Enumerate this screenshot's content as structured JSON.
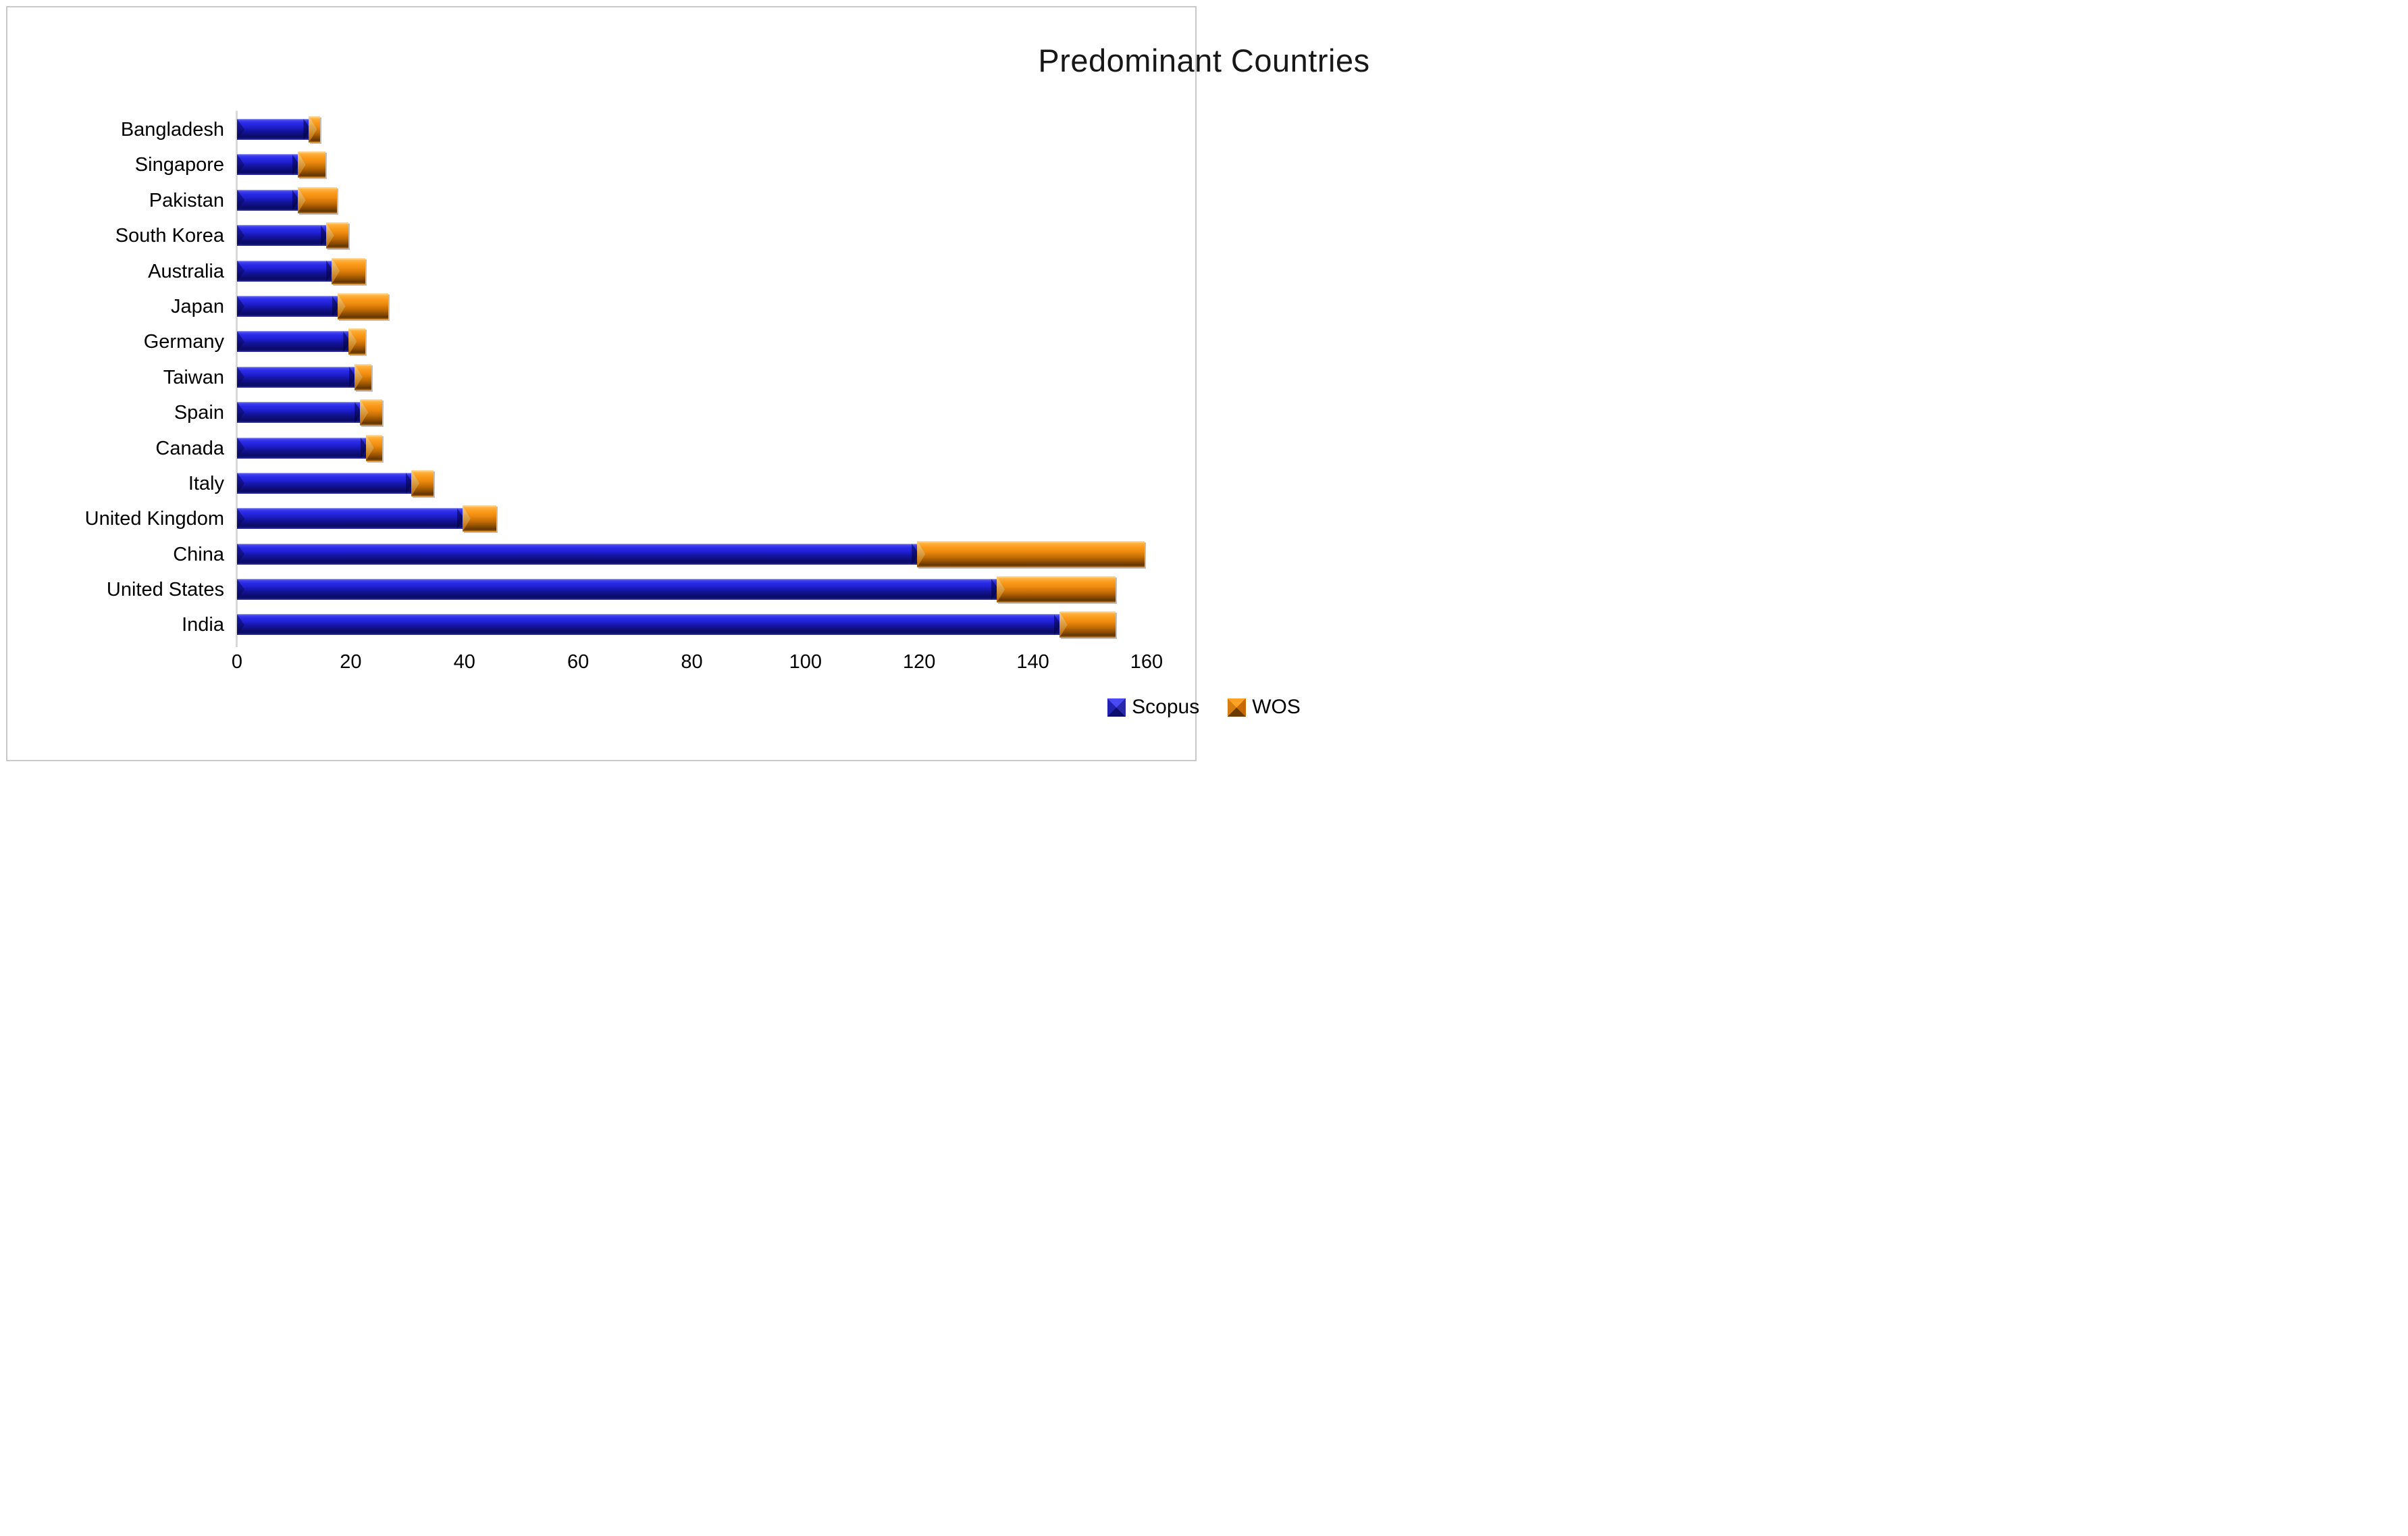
{
  "title": "Predominant Countries",
  "colors": {
    "scopus_blue": "#1f1fd2",
    "wos_orange": "#ef8c10",
    "axis_line": "#d9d9d9",
    "text": "#000000",
    "frame_border": "#c9c9c9"
  },
  "legend": {
    "items": [
      {
        "label": "Scopus",
        "swatch": "scopus-swatch-icon"
      },
      {
        "label": "WOS",
        "swatch": "wos-swatch-icon"
      }
    ]
  },
  "chart_data": {
    "type": "bar",
    "orientation": "horizontal",
    "stacked": true,
    "title": "Predominant Countries",
    "categories": [
      "Bangladesh",
      "Singapore",
      "Pakistan",
      "South Korea",
      "Australia",
      "Japan",
      "Germany",
      "Taiwan",
      "Spain",
      "Canada",
      "Italy",
      "United Kingdom",
      "China",
      "United States",
      "India"
    ],
    "series": [
      {
        "name": "Scopus",
        "color": "#1f1fd2",
        "values": [
          13,
          11,
          11,
          16,
          17,
          18,
          20,
          21,
          22,
          23,
          31,
          40,
          120,
          134,
          145
        ]
      },
      {
        "name": "WOS",
        "color": "#ef8c10",
        "values": [
          1,
          4,
          6,
          3,
          5,
          8,
          2,
          2,
          3,
          2,
          3,
          5,
          39,
          20,
          9
        ]
      }
    ],
    "xlabel": "",
    "ylabel": "",
    "xlim": [
      0,
      160
    ],
    "xticks": [
      0,
      20,
      40,
      60,
      80,
      100,
      120,
      140,
      160
    ],
    "grid": false,
    "legend_position": "bottom"
  }
}
